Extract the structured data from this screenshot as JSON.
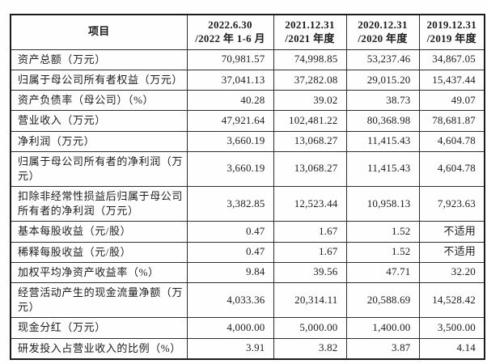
{
  "colors": {
    "background": "#fefefe",
    "text": "#1c1c1c",
    "table_border": "#1b1b1b",
    "grid_line": "#2e2e2e"
  },
  "table": {
    "header": {
      "item_label": "项目",
      "periods": [
        {
          "line1": "2022.6.30",
          "line2": "/2022 年 1-6 月"
        },
        {
          "line1": "2021.12.31",
          "line2": "/2021 年度"
        },
        {
          "line1": "2020.12.31",
          "line2": "/2020 年度"
        },
        {
          "line1": "2019.12.31",
          "line2": "/2019 年度"
        }
      ]
    },
    "rows": [
      {
        "label": "资产总额（万元）",
        "values": [
          "70,981.57",
          "74,998.85",
          "53,237.46",
          "34,867.05"
        ]
      },
      {
        "label": "归属于母公司所有者权益（万元）",
        "values": [
          "37,041.13",
          "37,282.08",
          "29,015.20",
          "15,437.44"
        ]
      },
      {
        "label": "资产负债率（母公司）（%）",
        "values": [
          "40.28",
          "39.02",
          "38.73",
          "49.07"
        ]
      },
      {
        "label": "营业收入（万元）",
        "values": [
          "47,921.64",
          "102,481.22",
          "80,368.98",
          "78,681.87"
        ]
      },
      {
        "label": "净利润（万元）",
        "values": [
          "3,660.19",
          "13,068.27",
          "11,415.43",
          "4,604.78"
        ]
      },
      {
        "label": "归属于母公司所有者的净利润（万元）",
        "values": [
          "3,660.19",
          "13,068.27",
          "11,415.43",
          "4,604.78"
        ]
      },
      {
        "label": "扣除非经常性损益后归属于母公司所有者的净利润（万元）",
        "values": [
          "3,382.85",
          "12,523.44",
          "10,958.13",
          "7,923.63"
        ]
      },
      {
        "label": "基本每股收益（元/股）",
        "values": [
          "0.47",
          "1.67",
          "1.52",
          "不适用"
        ]
      },
      {
        "label": "稀释每股收益（元/股）",
        "values": [
          "0.47",
          "1.67",
          "1.52",
          "不适用"
        ]
      },
      {
        "label": "加权平均净资产收益率（%）",
        "values": [
          "9.84",
          "39.56",
          "47.71",
          "32.20"
        ]
      },
      {
        "label": "经营活动产生的现金流量净额（万元）",
        "values": [
          "4,033.36",
          "20,314.11",
          "20,588.69",
          "14,528.42"
        ]
      },
      {
        "label": "现金分红（万元）",
        "values": [
          "4,000.00",
          "5,000.00",
          "1,400.00",
          "3,500.00"
        ]
      },
      {
        "label": "研发投入占营业收入的比例（%）",
        "values": [
          "3.91",
          "3.82",
          "3.87",
          "4.14"
        ]
      }
    ]
  }
}
